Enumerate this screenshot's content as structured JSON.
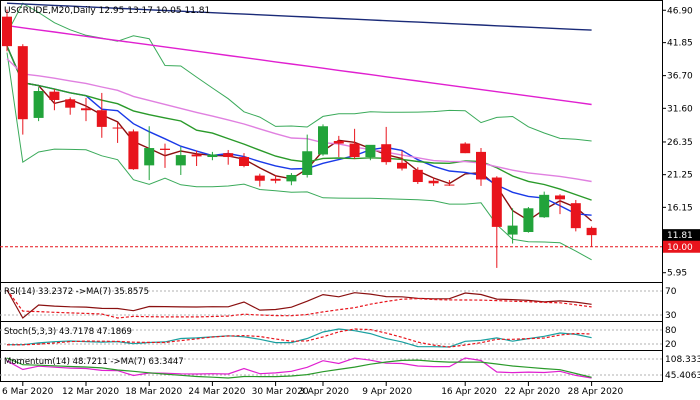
{
  "main": {
    "symbol_line": "USCRUDE,M20,Daily  12.95 13.17 10.05 11.81",
    "price_axis": [
      46.9,
      41.85,
      36.7,
      31.6,
      26.35,
      21.25,
      16.15,
      5.95
    ],
    "current_price": "11.81",
    "level_price": "10.00",
    "colors": {
      "bull": "#22a33a",
      "bear": "#e8141c",
      "ma_navy": "#1a2a78",
      "ma_magenta": "#e020d0",
      "ma_pink": "#e080e0",
      "ma_green": "#2a9a2a",
      "ma_blue": "#1a3ae8",
      "ma_darkred": "#8a1010",
      "bollinger": "#3aaa5a",
      "level": "#e8141c"
    }
  },
  "rsi": {
    "label": "RSI(14) 33.2372 ->MA(7) 35.8575",
    "axis": [
      "70",
      "30"
    ]
  },
  "stoch": {
    "label": "Stoch(5,3,3) 43.7178 47.1869",
    "axis": [
      "80",
      "20"
    ]
  },
  "momentum": {
    "label": "Momentum(14) 48.7211 ->MA(7) 63.3447",
    "axis": [
      "108.3332",
      "45.4063"
    ]
  },
  "x_axis": [
    "6 Mar 2020",
    "12 Mar 2020",
    "18 Mar 2020",
    "24 Mar 2020",
    "30 Mar 2020",
    "3 Apr 2020",
    "9 Apr 2020",
    "16 Apr 2020",
    "22 Apr 2020",
    "28 Apr 2020"
  ],
  "chart_data": {
    "type": "candlestick",
    "x": [
      "2020-03-05",
      "2020-03-06",
      "2020-03-09",
      "2020-03-10",
      "2020-03-11",
      "2020-03-12",
      "2020-03-13",
      "2020-03-16",
      "2020-03-17",
      "2020-03-18",
      "2020-03-19",
      "2020-03-20",
      "2020-03-23",
      "2020-03-24",
      "2020-03-25",
      "2020-03-26",
      "2020-03-27",
      "2020-03-30",
      "2020-03-31",
      "2020-04-01",
      "2020-04-02",
      "2020-04-03",
      "2020-04-06",
      "2020-04-07",
      "2020-04-08",
      "2020-04-09",
      "2020-04-13",
      "2020-04-14",
      "2020-04-15",
      "2020-04-16",
      "2020-04-17",
      "2020-04-20",
      "2020-04-21",
      "2020-04-22",
      "2020-04-23",
      "2020-04-24",
      "2020-04-27",
      "2020-04-28"
    ],
    "candles": [
      {
        "o": 45.9,
        "h": 47.0,
        "l": 40.5,
        "c": 41.3
      },
      {
        "o": 41.3,
        "h": 41.6,
        "l": 27.5,
        "c": 29.9
      },
      {
        "o": 30.1,
        "h": 34.9,
        "l": 29.6,
        "c": 34.3
      },
      {
        "o": 34.2,
        "h": 34.6,
        "l": 31.3,
        "c": 32.9
      },
      {
        "o": 33.0,
        "h": 33.3,
        "l": 30.6,
        "c": 31.7
      },
      {
        "o": 31.6,
        "h": 33.2,
        "l": 29.6,
        "c": 31.3
      },
      {
        "o": 31.3,
        "h": 34.0,
        "l": 27.0,
        "c": 28.7
      },
      {
        "o": 28.6,
        "h": 29.4,
        "l": 26.2,
        "c": 28.5
      },
      {
        "o": 28.0,
        "h": 28.3,
        "l": 22.0,
        "c": 22.1
      },
      {
        "o": 22.7,
        "h": 28.8,
        "l": 20.4,
        "c": 25.4
      },
      {
        "o": 25.3,
        "h": 26.1,
        "l": 22.3,
        "c": 25.1
      },
      {
        "o": 22.7,
        "h": 25.6,
        "l": 21.2,
        "c": 24.3
      },
      {
        "o": 24.4,
        "h": 25.0,
        "l": 22.6,
        "c": 24.1
      },
      {
        "o": 24.0,
        "h": 24.8,
        "l": 23.5,
        "c": 24.4
      },
      {
        "o": 24.6,
        "h": 25.1,
        "l": 22.8,
        "c": 24.0
      },
      {
        "o": 24.0,
        "h": 24.6,
        "l": 22.4,
        "c": 22.6
      },
      {
        "o": 21.1,
        "h": 21.4,
        "l": 19.4,
        "c": 20.3
      },
      {
        "o": 20.6,
        "h": 21.2,
        "l": 19.9,
        "c": 20.3
      },
      {
        "o": 20.2,
        "h": 21.5,
        "l": 19.6,
        "c": 21.2
      },
      {
        "o": 21.2,
        "h": 27.5,
        "l": 20.8,
        "c": 24.9
      },
      {
        "o": 24.4,
        "h": 29.1,
        "l": 24.2,
        "c": 28.8
      },
      {
        "o": 26.5,
        "h": 27.3,
        "l": 24.0,
        "c": 26.1
      },
      {
        "o": 26.1,
        "h": 28.4,
        "l": 23.7,
        "c": 24.0
      },
      {
        "o": 24.0,
        "h": 25.8,
        "l": 23.5,
        "c": 25.9
      },
      {
        "o": 26.0,
        "h": 28.7,
        "l": 22.8,
        "c": 23.2
      },
      {
        "o": 23.1,
        "h": 25.0,
        "l": 21.9,
        "c": 22.2
      },
      {
        "o": 22.0,
        "h": 22.4,
        "l": 19.8,
        "c": 20.1
      },
      {
        "o": 20.3,
        "h": 20.8,
        "l": 19.5,
        "c": 19.9
      },
      {
        "o": 19.7,
        "h": 20.4,
        "l": 19.5,
        "c": 19.6
      },
      {
        "o": 26.1,
        "h": 26.3,
        "l": 24.6,
        "c": 24.6
      },
      {
        "o": 24.8,
        "h": 25.4,
        "l": 19.5,
        "c": 20.5
      },
      {
        "o": 20.8,
        "h": 21.0,
        "l": 6.7,
        "c": 13.1
      },
      {
        "o": 11.9,
        "h": 16.0,
        "l": 10.5,
        "c": 13.3
      },
      {
        "o": 12.3,
        "h": 16.2,
        "l": 12.2,
        "c": 16.0
      },
      {
        "o": 14.6,
        "h": 18.6,
        "l": 14.5,
        "c": 18.1
      },
      {
        "o": 18.0,
        "h": 18.2,
        "l": 15.1,
        "c": 17.4
      },
      {
        "o": 16.8,
        "h": 17.3,
        "l": 12.4,
        "c": 12.9
      },
      {
        "o": 12.95,
        "h": 13.17,
        "l": 10.05,
        "c": 11.81
      }
    ],
    "ylim": [
      4.5,
      48.5
    ],
    "panes": [
      {
        "name": "RSI(14)",
        "values": [
          33.2372,
          35.8575
        ]
      },
      {
        "name": "Stoch(5,3,3)",
        "values": [
          43.7178,
          47.1869
        ]
      },
      {
        "name": "Momentum(14)",
        "values": [
          48.7211,
          63.3447
        ]
      }
    ]
  }
}
